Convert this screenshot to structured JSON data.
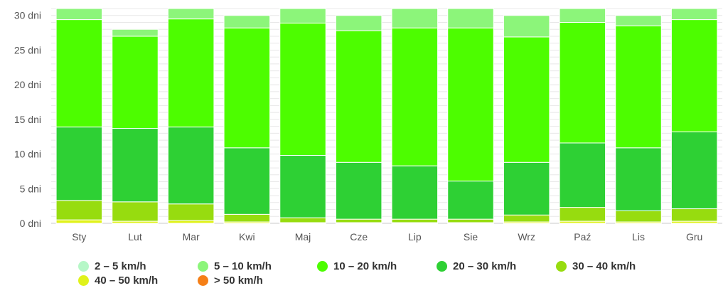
{
  "chart_data": {
    "type": "bar",
    "stacked": true,
    "categories": [
      "Sty",
      "Lut",
      "Mar",
      "Kwi",
      "Maj",
      "Cze",
      "Lip",
      "Sie",
      "Wrz",
      "Paź",
      "Lis",
      "Gru"
    ],
    "y_ticks": [
      "0 dni",
      "5 dni",
      "10 dni",
      "15 dni",
      "20 dni",
      "25 dni",
      "30 dni"
    ],
    "ylim": [
      0,
      31
    ],
    "grid": true,
    "legend_position": "bottom",
    "series": [
      {
        "name": "40 – 50 km/h",
        "color": "#e0f21b",
        "values": [
          0.5,
          0.3,
          0.4,
          0.2,
          0.1,
          0.1,
          0.1,
          0.1,
          0.2,
          0.3,
          0.2,
          0.3
        ]
      },
      {
        "name": "30 – 40 km/h",
        "color": "#97dc0f",
        "values": [
          2.8,
          2.8,
          2.4,
          1.1,
          0.7,
          0.5,
          0.5,
          0.5,
          1.0,
          2.0,
          1.6,
          1.8
        ]
      },
      {
        "name": "20 – 30 km/h",
        "color": "#2ed034",
        "values": [
          10.6,
          10.6,
          11.1,
          9.6,
          9.0,
          8.2,
          7.7,
          5.5,
          7.6,
          9.3,
          9.1,
          11.1
        ]
      },
      {
        "name": "10 – 20 km/h",
        "color": "#4dfd00",
        "values": [
          15.5,
          13.3,
          15.6,
          17.3,
          19.1,
          19.0,
          19.9,
          22.1,
          18.1,
          17.4,
          17.6,
          16.2
        ]
      },
      {
        "name": "5 – 10 km/h",
        "color": "#8cf57a",
        "values": [
          1.6,
          1.0,
          1.5,
          1.8,
          2.1,
          2.2,
          2.8,
          2.8,
          3.1,
          2.0,
          1.5,
          1.6
        ]
      },
      {
        "name": "2 – 5 km/h",
        "color": "#b6f7c7",
        "values": [
          0,
          0,
          0,
          0,
          0,
          0,
          0,
          0,
          0,
          0,
          0,
          0
        ]
      },
      {
        "name": "> 50 km/h",
        "color": "#f57f17",
        "values": [
          0,
          0,
          0,
          0,
          0,
          0,
          0,
          0,
          0,
          0,
          0,
          0
        ]
      }
    ],
    "legend_order": [
      "2 – 5 km/h",
      "5 – 10 km/h",
      "10 – 20 km/h",
      "20 – 30 km/h",
      "30 – 40 km/h",
      "40 – 50 km/h",
      "> 50 km/h"
    ]
  }
}
